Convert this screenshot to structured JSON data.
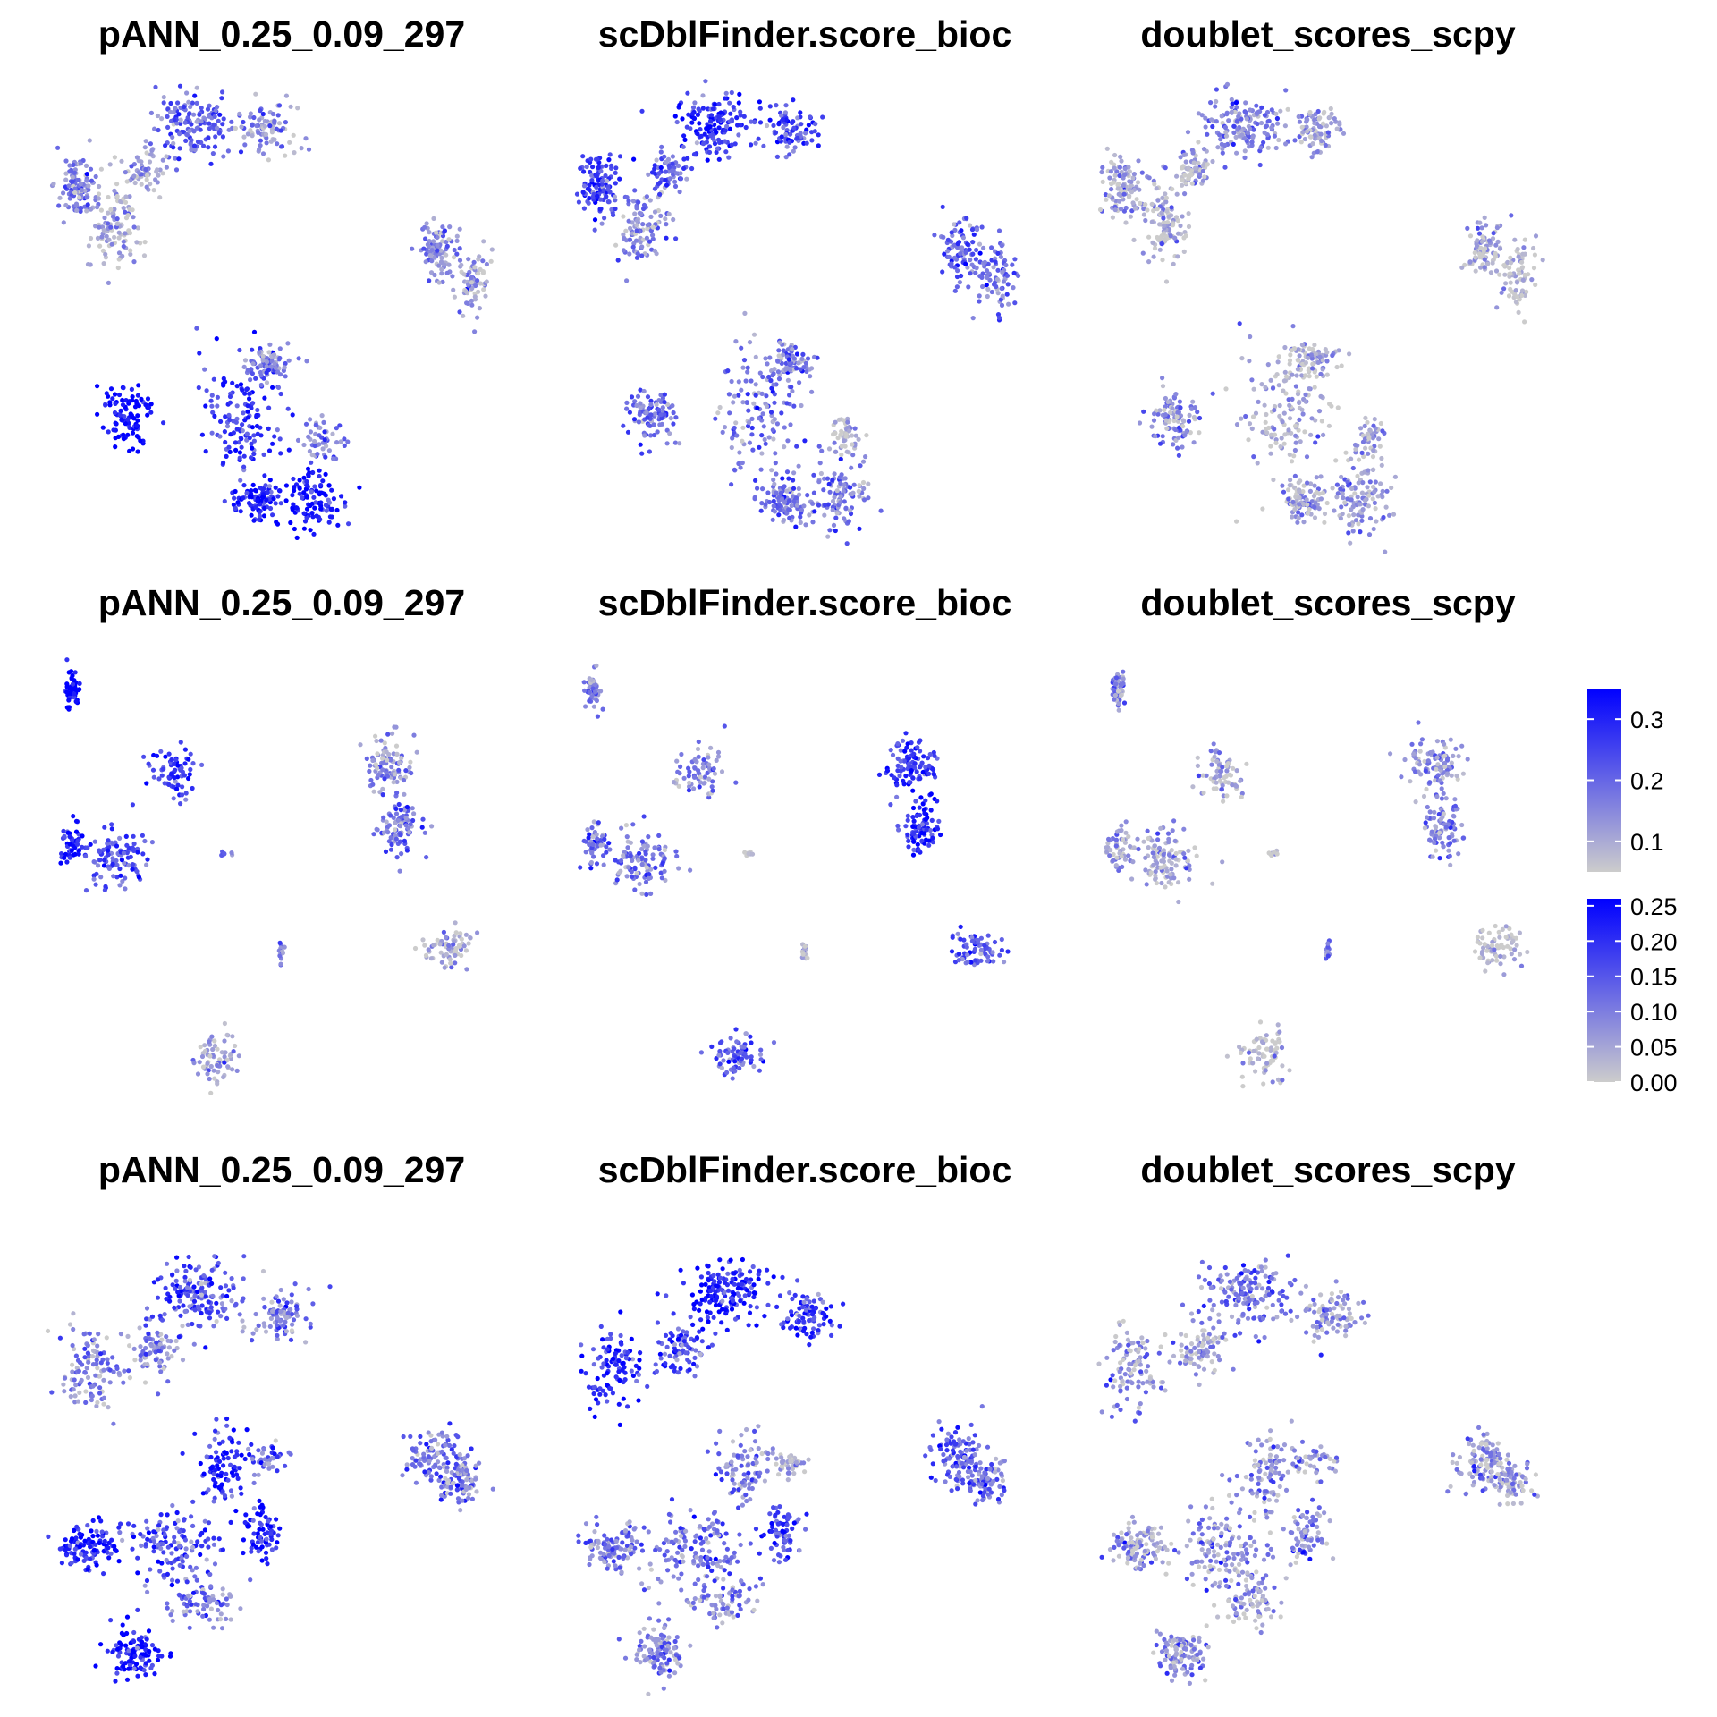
{
  "colors": {
    "low": "#cccccc",
    "high": "#0000ff",
    "tick": "#ffffff"
  },
  "chart_data": {
    "type": "scatter",
    "panels": [
      {
        "row": 0,
        "col": 0,
        "title": "pANN_0.25_0.09_297",
        "colorscale": 0
      },
      {
        "row": 0,
        "col": 1,
        "title": "scDblFinder.score_bioc",
        "colorscale": 0
      },
      {
        "row": 0,
        "col": 2,
        "title": "doublet_scores_scpy",
        "colorscale": 0
      },
      {
        "row": 1,
        "col": 0,
        "title": "pANN_0.25_0.09_297",
        "colorscale": 0
      },
      {
        "row": 1,
        "col": 1,
        "title": "scDblFinder.score_bioc",
        "colorscale": 0
      },
      {
        "row": 1,
        "col": 2,
        "title": "doublet_scores_scpy",
        "colorscale": 0
      },
      {
        "row": 2,
        "col": 0,
        "title": "pANN_0.25_0.09_297",
        "colorscale": 1
      },
      {
        "row": 2,
        "col": 1,
        "title": "scDblFinder.score_bioc",
        "colorscale": 1
      },
      {
        "row": 2,
        "col": 2,
        "title": "doublet_scores_scpy",
        "colorscale": 1
      }
    ],
    "clusters": [
      {
        "row": 0,
        "points": 110,
        "x": 0.03,
        "y": 0.22,
        "rx": 0.04,
        "ry": 0.06,
        "scores": [
          0.18,
          0.26,
          0.11
        ]
      },
      {
        "row": 0,
        "points": 110,
        "x": 0.12,
        "y": 0.3,
        "rx": 0.05,
        "ry": 0.08,
        "scores": [
          0.09,
          0.15,
          0.08
        ]
      },
      {
        "row": 0,
        "points": 150,
        "x": 0.28,
        "y": 0.08,
        "rx": 0.08,
        "ry": 0.06,
        "scores": [
          0.2,
          0.28,
          0.16
        ]
      },
      {
        "row": 0,
        "points": 90,
        "x": 0.44,
        "y": 0.09,
        "rx": 0.06,
        "ry": 0.05,
        "scores": [
          0.13,
          0.24,
          0.12
        ]
      },
      {
        "row": 0,
        "points": 60,
        "x": 0.18,
        "y": 0.18,
        "rx": 0.04,
        "ry": 0.04,
        "scores": [
          0.12,
          0.22,
          0.1
        ]
      },
      {
        "row": 0,
        "points": 90,
        "x": 0.81,
        "y": 0.36,
        "rx": 0.04,
        "ry": 0.06,
        "scores": [
          0.14,
          0.2,
          0.08
        ]
      },
      {
        "row": 0,
        "points": 80,
        "x": 0.88,
        "y": 0.42,
        "rx": 0.04,
        "ry": 0.07,
        "scores": [
          0.11,
          0.19,
          0.07
        ]
      },
      {
        "row": 0,
        "points": 100,
        "x": 0.14,
        "y": 0.73,
        "rx": 0.05,
        "ry": 0.06,
        "scores": [
          0.35,
          0.2,
          0.15
        ]
      },
      {
        "row": 0,
        "points": 140,
        "x": 0.38,
        "y": 0.72,
        "rx": 0.08,
        "ry": 0.14,
        "scores": [
          0.27,
          0.18,
          0.1
        ]
      },
      {
        "row": 0,
        "points": 80,
        "x": 0.44,
        "y": 0.61,
        "rx": 0.05,
        "ry": 0.04,
        "scores": [
          0.17,
          0.16,
          0.08
        ]
      },
      {
        "row": 0,
        "points": 90,
        "x": 0.42,
        "y": 0.92,
        "rx": 0.05,
        "ry": 0.04,
        "scores": [
          0.3,
          0.19,
          0.12
        ]
      },
      {
        "row": 0,
        "points": 110,
        "x": 0.54,
        "y": 0.92,
        "rx": 0.06,
        "ry": 0.07,
        "scores": [
          0.32,
          0.17,
          0.13
        ]
      },
      {
        "row": 0,
        "points": 50,
        "x": 0.56,
        "y": 0.78,
        "rx": 0.04,
        "ry": 0.05,
        "scores": [
          0.15,
          0.06,
          0.1
        ]
      },
      {
        "row": 1,
        "points": 50,
        "x": 0.02,
        "y": 0.07,
        "rx": 0.015,
        "ry": 0.04,
        "scores": [
          0.34,
          0.16,
          0.13
        ]
      },
      {
        "row": 1,
        "points": 70,
        "x": 0.24,
        "y": 0.26,
        "rx": 0.05,
        "ry": 0.05,
        "scores": [
          0.27,
          0.15,
          0.1
        ]
      },
      {
        "row": 1,
        "points": 50,
        "x": 0.02,
        "y": 0.42,
        "rx": 0.025,
        "ry": 0.04,
        "scores": [
          0.32,
          0.2,
          0.12
        ]
      },
      {
        "row": 1,
        "points": 110,
        "x": 0.12,
        "y": 0.45,
        "rx": 0.06,
        "ry": 0.06,
        "scores": [
          0.24,
          0.19,
          0.1
        ]
      },
      {
        "row": 1,
        "points": 100,
        "x": 0.7,
        "y": 0.24,
        "rx": 0.05,
        "ry": 0.06,
        "scores": [
          0.14,
          0.27,
          0.13
        ]
      },
      {
        "row": 1,
        "points": 90,
        "x": 0.72,
        "y": 0.38,
        "rx": 0.04,
        "ry": 0.06,
        "scores": [
          0.2,
          0.3,
          0.15
        ]
      },
      {
        "row": 1,
        "points": 70,
        "x": 0.83,
        "y": 0.65,
        "rx": 0.05,
        "ry": 0.04,
        "scores": [
          0.09,
          0.22,
          0.06
        ]
      },
      {
        "row": 1,
        "points": 14,
        "x": 0.47,
        "y": 0.66,
        "rx": 0.005,
        "ry": 0.02,
        "scores": [
          0.15,
          0.05,
          0.15
        ]
      },
      {
        "row": 1,
        "points": 8,
        "x": 0.35,
        "y": 0.44,
        "rx": 0.01,
        "ry": 0.006,
        "scores": [
          0.2,
          0.05,
          0.05
        ]
      },
      {
        "row": 1,
        "points": 70,
        "x": 0.33,
        "y": 0.89,
        "rx": 0.05,
        "ry": 0.05,
        "scores": [
          0.12,
          0.21,
          0.07
        ]
      },
      {
        "row": 2,
        "points": 110,
        "x": 0.06,
        "y": 0.32,
        "rx": 0.06,
        "ry": 0.09,
        "scores": [
          0.09,
          0.2,
          0.07
        ]
      },
      {
        "row": 2,
        "points": 80,
        "x": 0.2,
        "y": 0.28,
        "rx": 0.05,
        "ry": 0.06,
        "scores": [
          0.08,
          0.16,
          0.05
        ]
      },
      {
        "row": 2,
        "points": 160,
        "x": 0.3,
        "y": 0.15,
        "rx": 0.08,
        "ry": 0.07,
        "scores": [
          0.16,
          0.22,
          0.12
        ]
      },
      {
        "row": 2,
        "points": 90,
        "x": 0.47,
        "y": 0.2,
        "rx": 0.06,
        "ry": 0.05,
        "scores": [
          0.1,
          0.18,
          0.06
        ]
      },
      {
        "row": 2,
        "points": 100,
        "x": 0.8,
        "y": 0.52,
        "rx": 0.05,
        "ry": 0.06,
        "scores": [
          0.12,
          0.14,
          0.07
        ]
      },
      {
        "row": 2,
        "points": 80,
        "x": 0.86,
        "y": 0.57,
        "rx": 0.04,
        "ry": 0.05,
        "scores": [
          0.1,
          0.1,
          0.06
        ]
      },
      {
        "row": 2,
        "points": 90,
        "x": 0.34,
        "y": 0.55,
        "rx": 0.05,
        "ry": 0.08,
        "scores": [
          0.2,
          0.09,
          0.08
        ]
      },
      {
        "row": 2,
        "points": 110,
        "x": 0.06,
        "y": 0.72,
        "rx": 0.06,
        "ry": 0.05,
        "scores": [
          0.22,
          0.11,
          0.05
        ]
      },
      {
        "row": 2,
        "points": 130,
        "x": 0.24,
        "y": 0.72,
        "rx": 0.09,
        "ry": 0.08,
        "scores": [
          0.17,
          0.12,
          0.07
        ]
      },
      {
        "row": 2,
        "points": 70,
        "x": 0.42,
        "y": 0.69,
        "rx": 0.04,
        "ry": 0.06,
        "scores": [
          0.22,
          0.16,
          0.09
        ]
      },
      {
        "row": 2,
        "points": 80,
        "x": 0.3,
        "y": 0.84,
        "rx": 0.07,
        "ry": 0.05,
        "scores": [
          0.11,
          0.09,
          0.06
        ]
      },
      {
        "row": 2,
        "points": 110,
        "x": 0.16,
        "y": 0.96,
        "rx": 0.05,
        "ry": 0.05,
        "scores": [
          0.24,
          0.08,
          0.08
        ]
      },
      {
        "row": 2,
        "points": 40,
        "x": 0.44,
        "y": 0.53,
        "rx": 0.04,
        "ry": 0.03,
        "scores": [
          0.13,
          0.02,
          0.07
        ]
      }
    ],
    "colorbars": [
      {
        "min": 0.05,
        "max": 0.35,
        "ticks": [
          0.1,
          0.2,
          0.3
        ],
        "tick_labels": [
          "0.1",
          "0.2",
          "0.3"
        ]
      },
      {
        "min": 0.0,
        "max": 0.26,
        "ticks": [
          0.0,
          0.05,
          0.1,
          0.15,
          0.2,
          0.25
        ],
        "tick_labels": [
          "0.00",
          "0.05",
          "0.10",
          "0.15",
          "0.20",
          "0.25"
        ]
      }
    ]
  }
}
